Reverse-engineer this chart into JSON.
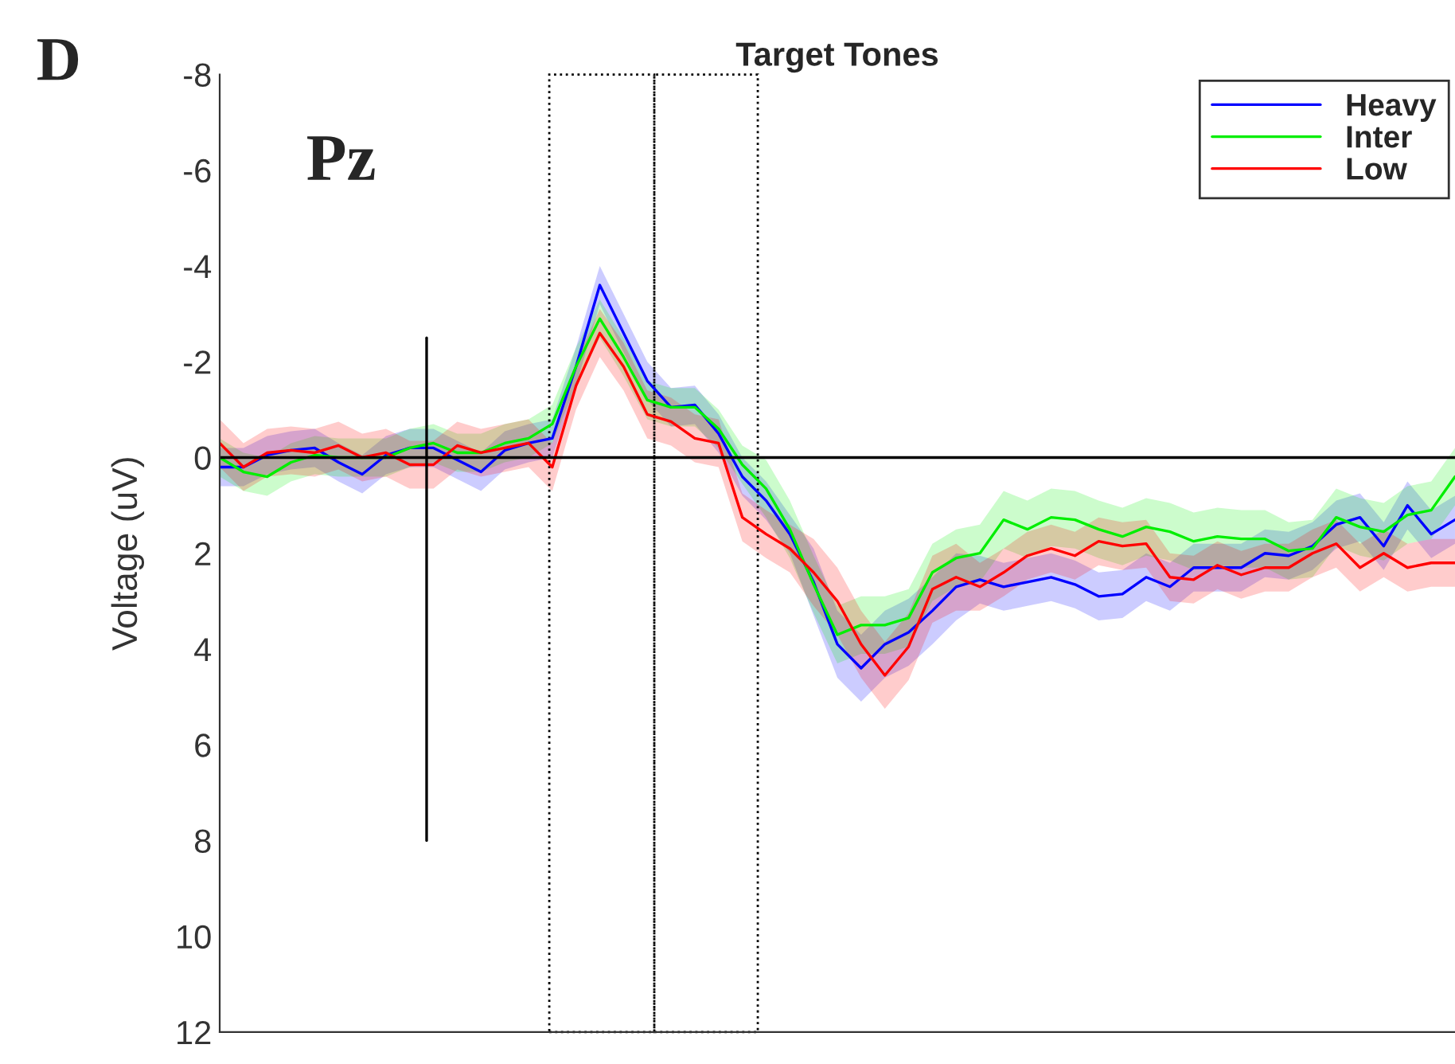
{
  "chart_data": {
    "type": "line",
    "title": "Target Tones",
    "ylabel": "Voltage (uV)",
    "annotations": [
      "D",
      "Pz"
    ],
    "categories": [
      null,
      null,
      null,
      null,
      null,
      null,
      null,
      null,
      null,
      null,
      null,
      null,
      null,
      null,
      null,
      null,
      null,
      null,
      null,
      null,
      null,
      null,
      null,
      null,
      null,
      null,
      null,
      null,
      null,
      null,
      null,
      null,
      null,
      null,
      null,
      null,
      null,
      null,
      null,
      null,
      null,
      null,
      null,
      null,
      null,
      null,
      null,
      null,
      null,
      null,
      null,
      null,
      null
    ],
    "ylim": [
      12,
      -8
    ],
    "yticks": [
      -8,
      -6,
      -4,
      -2,
      0,
      2,
      4,
      6,
      8,
      10,
      12
    ],
    "tick_labels": "y",
    "legend": "top right",
    "ref_lines": [
      {
        "axis": "y",
        "value": 0,
        "color": "#000000"
      }
    ],
    "series": [
      {
        "name": "Heavy",
        "color": "#0000ff",
        "values": [
          0.2,
          0.2,
          -0.05,
          -0.15,
          -0.2,
          0.1,
          0.35,
          -0.05,
          -0.2,
          -0.2,
          0.05,
          0.3,
          -0.15,
          -0.3,
          -0.4,
          -1.9,
          -3.6,
          -2.6,
          -1.6,
          -1.05,
          -1.1,
          -0.5,
          0.4,
          0.9,
          1.6,
          2.6,
          3.9,
          4.4,
          3.9,
          3.65,
          3.2,
          2.7,
          2.55,
          2.7,
          2.6,
          2.5,
          2.65,
          2.9,
          2.85,
          2.5,
          2.7,
          2.3,
          2.3,
          2.3,
          2.0,
          2.05,
          1.85,
          1.4,
          1.25,
          1.85,
          1.0,
          1.6,
          1.3
        ],
        "lower": [
          -0.2,
          -0.2,
          -0.45,
          -0.55,
          -0.6,
          -0.3,
          -0.05,
          -0.45,
          -0.6,
          -0.6,
          -0.35,
          -0.1,
          -0.55,
          -0.7,
          -0.8,
          -2.3,
          -4.0,
          -3.0,
          -2.0,
          -1.45,
          -1.5,
          -0.9,
          0,
          0.5,
          1.2,
          1.9,
          3.2,
          3.7,
          3.2,
          2.95,
          2.5,
          2.0,
          2.05,
          2.2,
          2.1,
          2.0,
          2.15,
          2.4,
          2.35,
          2.0,
          2.2,
          1.8,
          1.8,
          1.8,
          1.5,
          1.55,
          1.35,
          0.9,
          0.75,
          1.35,
          0.5,
          1.1,
          0.8
        ],
        "upper": [
          0.6,
          0.6,
          0.35,
          0.25,
          0.2,
          0.5,
          0.75,
          0.35,
          0.2,
          0.2,
          0.45,
          0.7,
          0.25,
          0.1,
          0,
          -1.5,
          -3.2,
          -2.2,
          -1.2,
          -0.65,
          -0.7,
          -0.1,
          0.8,
          1.3,
          2.0,
          3.3,
          4.6,
          5.1,
          4.6,
          4.35,
          3.9,
          3.4,
          3.05,
          3.2,
          3.1,
          3.0,
          3.15,
          3.4,
          3.35,
          3.0,
          3.2,
          2.8,
          2.8,
          2.8,
          2.5,
          2.55,
          2.35,
          1.9,
          1.75,
          2.35,
          1.5,
          2.1,
          1.8
        ]
      },
      {
        "name": "Inter",
        "color": "#00ee00",
        "values": [
          0,
          0.3,
          0.4,
          0.1,
          -0.05,
          0,
          0,
          0,
          -0.2,
          -0.3,
          -0.1,
          -0.1,
          -0.3,
          -0.4,
          -0.7,
          -1.9,
          -2.9,
          -2.1,
          -1.2,
          -1.05,
          -1.05,
          -0.6,
          0.15,
          0.65,
          1.5,
          2.65,
          3.7,
          3.5,
          3.5,
          3.35,
          2.4,
          2.1,
          2.0,
          1.3,
          1.5,
          1.25,
          1.3,
          1.5,
          1.65,
          1.45,
          1.55,
          1.75,
          1.65,
          1.7,
          1.7,
          1.95,
          1.9,
          1.25,
          1.45,
          1.55,
          1.2,
          1.1,
          0.4
        ],
        "lower": [
          -0.4,
          -0.1,
          0,
          -0.3,
          -0.45,
          -0.4,
          -0.4,
          -0.4,
          -0.6,
          -0.7,
          -0.5,
          -0.5,
          -0.7,
          -0.8,
          -1.1,
          -2.3,
          -3.3,
          -2.5,
          -1.6,
          -1.45,
          -1.45,
          -1.0,
          -0.25,
          0.05,
          0.9,
          2.05,
          3.1,
          2.9,
          2.9,
          2.75,
          1.8,
          1.5,
          1.4,
          0.7,
          0.9,
          0.65,
          0.7,
          0.9,
          1.05,
          0.85,
          0.95,
          1.15,
          1.05,
          1.1,
          1.1,
          1.35,
          1.3,
          0.65,
          0.85,
          0.95,
          0.6,
          0.5,
          -0.2
        ],
        "upper": [
          0.4,
          0.7,
          0.8,
          0.5,
          0.35,
          0.4,
          0.4,
          0.4,
          0.2,
          0.1,
          0.3,
          0.3,
          0.1,
          0,
          -0.3,
          -1.5,
          -2.5,
          -1.7,
          -0.8,
          -0.65,
          -0.65,
          -0.2,
          0.55,
          1.25,
          2.1,
          3.25,
          4.3,
          4.1,
          4.1,
          3.95,
          3.0,
          2.7,
          2.6,
          1.9,
          2.1,
          1.85,
          1.9,
          2.1,
          2.25,
          2.05,
          2.15,
          2.35,
          2.25,
          2.3,
          2.3,
          2.55,
          2.5,
          1.85,
          2.05,
          2.15,
          1.8,
          1.7,
          1.0
        ]
      },
      {
        "name": "Low",
        "color": "#ff0000",
        "values": [
          -0.3,
          0.2,
          -0.1,
          -0.15,
          -0.1,
          -0.25,
          0,
          -0.1,
          0.15,
          0.15,
          -0.25,
          -0.1,
          -0.2,
          -0.3,
          0.2,
          -1.5,
          -2.6,
          -1.9,
          -0.9,
          -0.75,
          -0.4,
          -0.3,
          1.25,
          1.6,
          1.9,
          2.4,
          3.0,
          3.9,
          4.55,
          3.95,
          2.75,
          2.5,
          2.7,
          2.4,
          2.05,
          1.9,
          2.05,
          1.75,
          1.85,
          1.8,
          2.5,
          2.55,
          2.25,
          2.45,
          2.3,
          2.3,
          2.0,
          1.8,
          2.3,
          2.0,
          2.3,
          2.2,
          2.2
        ],
        "lower": [
          -0.8,
          -0.3,
          -0.6,
          -0.65,
          -0.6,
          -0.75,
          -0.5,
          -0.6,
          -0.35,
          -0.35,
          -0.75,
          -0.6,
          -0.7,
          -0.8,
          -0.3,
          -2.0,
          -3.1,
          -2.4,
          -1.4,
          -1.25,
          -0.9,
          -0.8,
          0.75,
          1.1,
          1.4,
          1.7,
          2.3,
          3.2,
          3.85,
          3.25,
          2.05,
          1.8,
          2.2,
          1.9,
          1.55,
          1.4,
          1.55,
          1.25,
          1.35,
          1.3,
          2.0,
          2.05,
          1.75,
          1.95,
          1.8,
          1.8,
          1.5,
          1.3,
          1.8,
          1.5,
          1.8,
          1.7,
          1.7
        ],
        "upper": [
          0.2,
          0.7,
          0.4,
          0.35,
          0.4,
          0.25,
          0.5,
          0.4,
          0.65,
          0.65,
          0.25,
          0.4,
          0.3,
          0.2,
          0.7,
          -1.0,
          -2.1,
          -1.4,
          -0.4,
          -0.25,
          0.1,
          0.2,
          1.75,
          2.1,
          2.4,
          3.1,
          3.7,
          4.6,
          5.25,
          4.65,
          3.45,
          3.2,
          3.2,
          2.9,
          2.55,
          2.4,
          2.55,
          2.25,
          2.35,
          2.3,
          3.0,
          3.05,
          2.75,
          2.95,
          2.8,
          2.8,
          2.5,
          2.3,
          2.8,
          2.5,
          2.8,
          2.7,
          2.7
        ]
      }
    ]
  }
}
